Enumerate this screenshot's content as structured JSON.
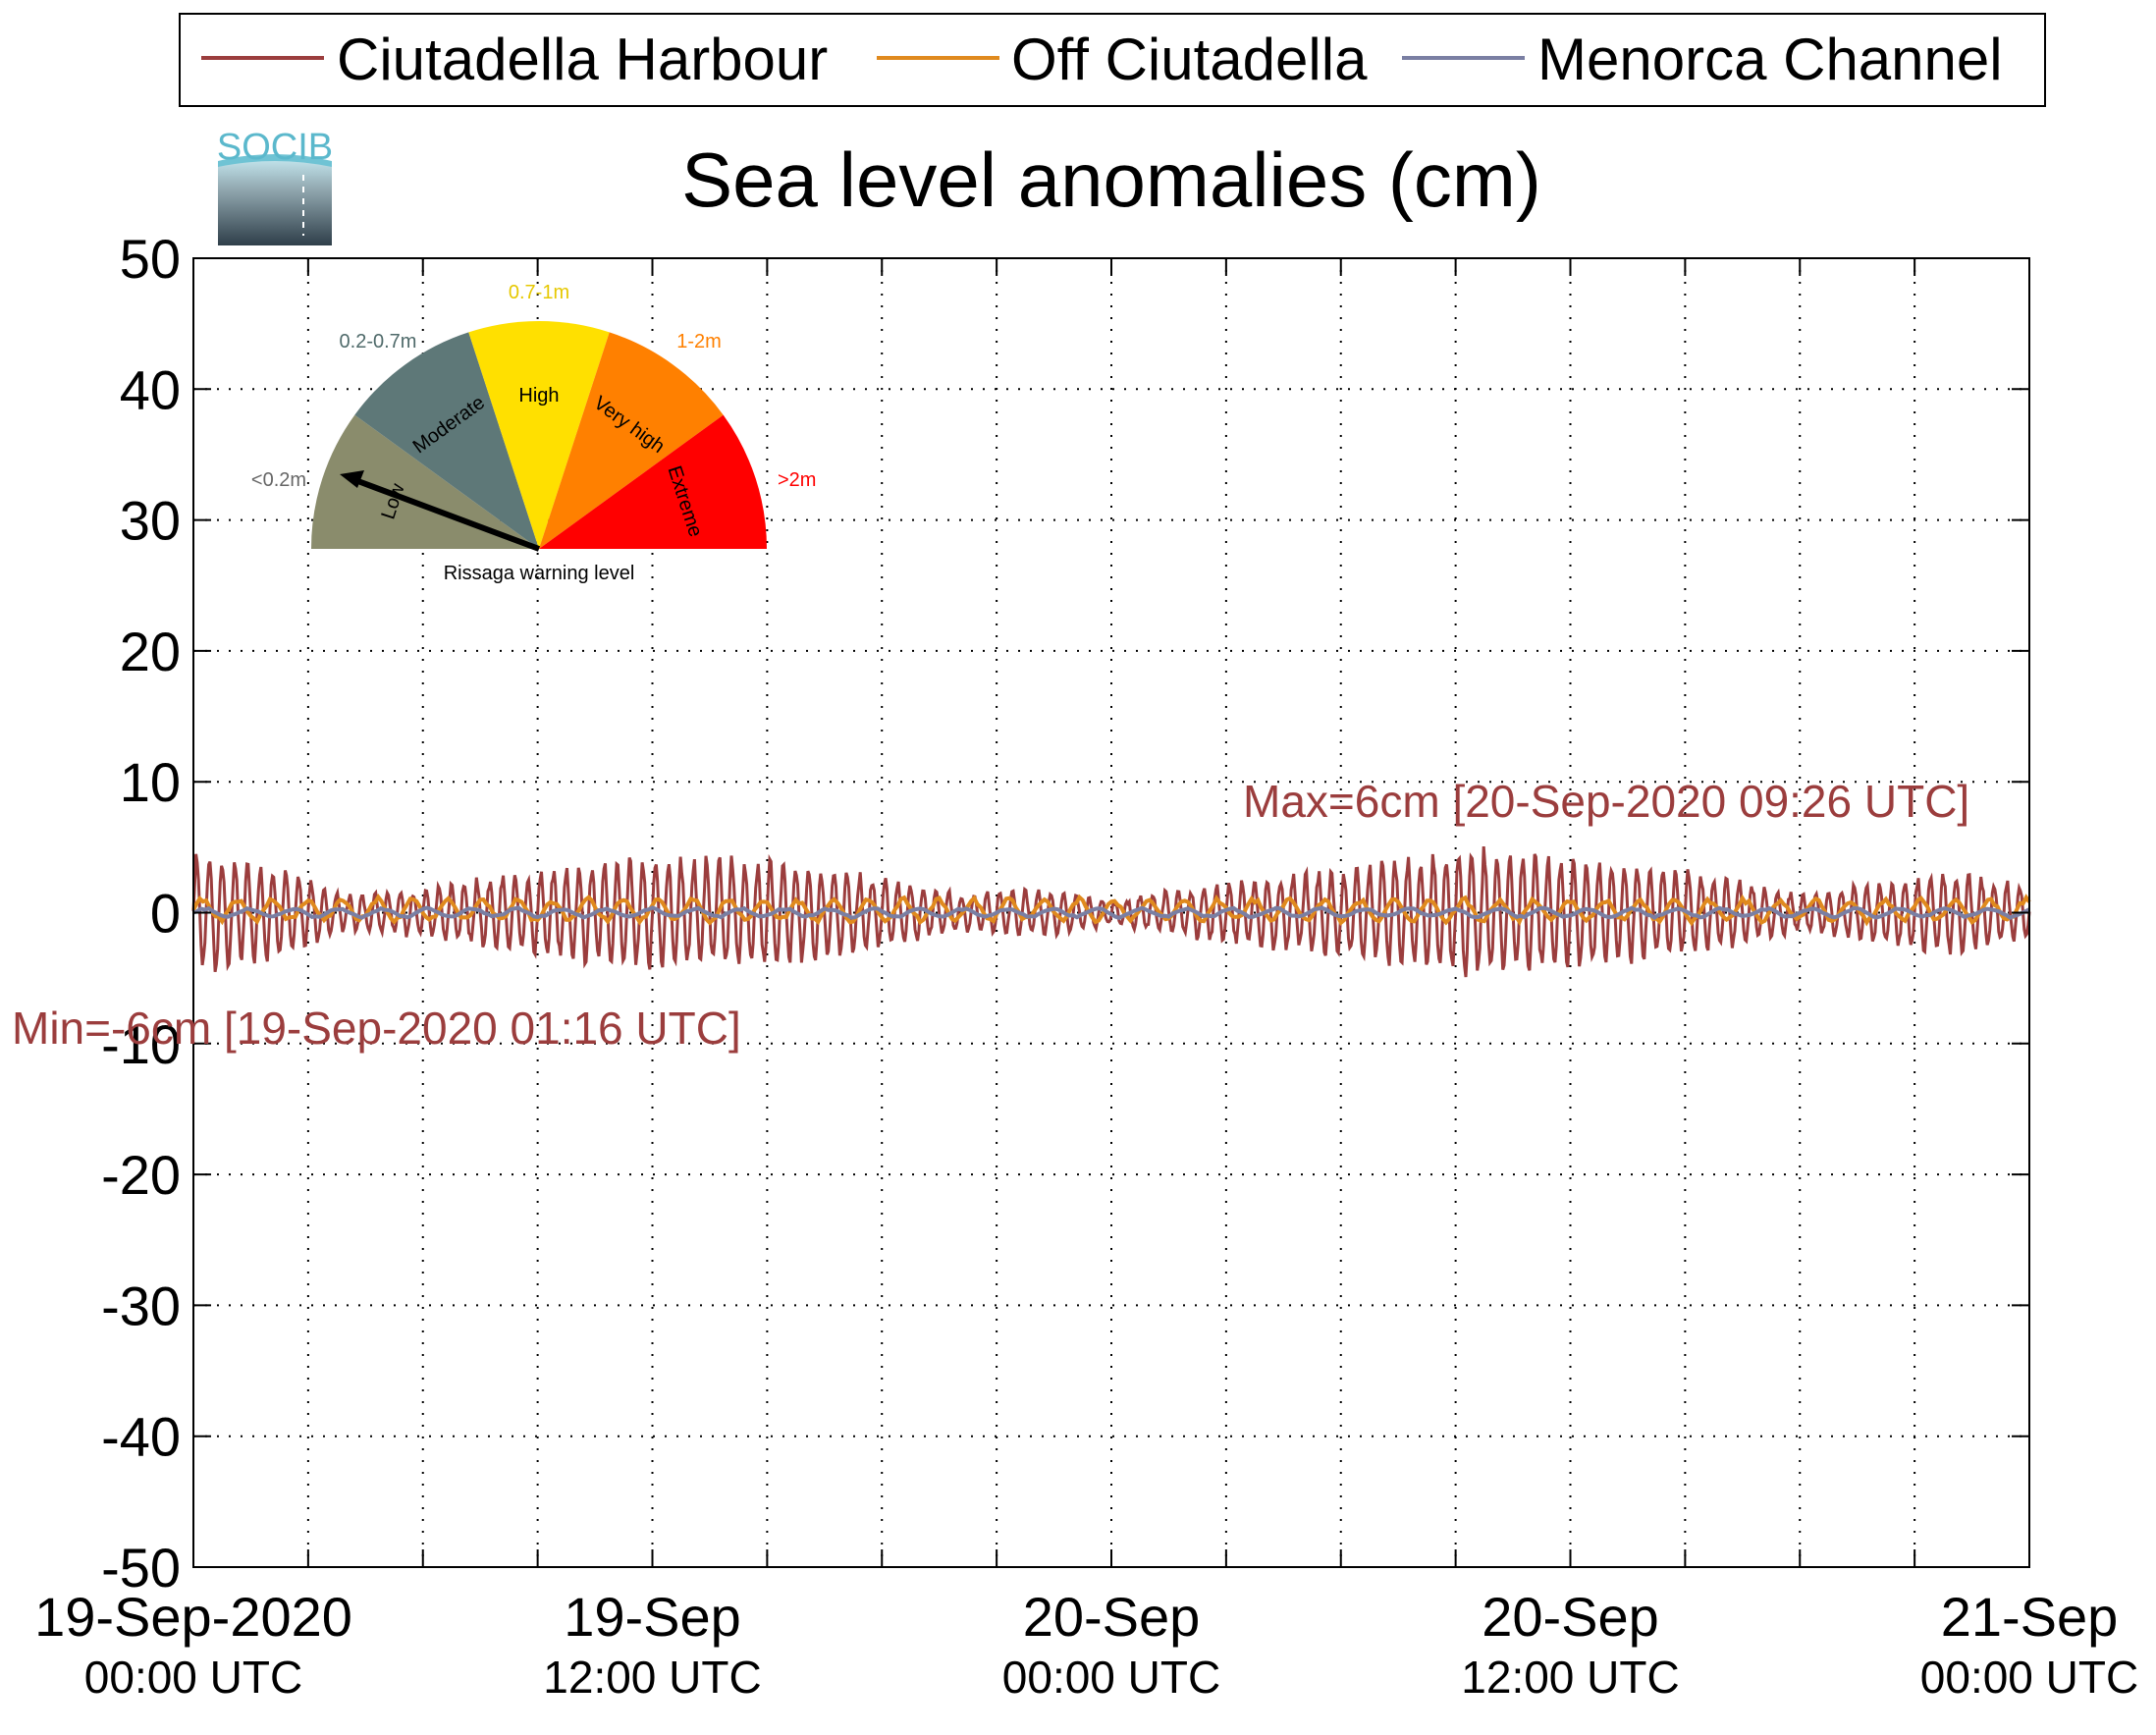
{
  "logo": {
    "text": "SOCIB"
  },
  "legend": {
    "position": "top",
    "entries": [
      {
        "label": "Ciutadella Harbour",
        "color": "#9b3d3d"
      },
      {
        "label": "Off Ciutadella",
        "color": "#e08a1e"
      },
      {
        "label": "Menorca Channel",
        "color": "#7a7fa3"
      }
    ]
  },
  "chart_data": {
    "type": "line",
    "title": "Sea level anomalies (cm)",
    "xlabel": "",
    "ylabel": "",
    "ylim": [
      -50,
      50
    ],
    "yticks": [
      "50",
      "40",
      "30",
      "20",
      "10",
      "0",
      "-10",
      "-20",
      "-30",
      "-40",
      "-50"
    ],
    "xlim": [
      "2020-09-19T00:00",
      "2020-09-21T00:00"
    ],
    "xticks": [
      {
        "date": "19-Sep-2020",
        "time": "00:00 UTC"
      },
      {
        "date": "19-Sep",
        "time": "12:00 UTC"
      },
      {
        "date": "20-Sep",
        "time": "00:00 UTC"
      },
      {
        "date": "20-Sep",
        "time": "12:00 UTC"
      },
      {
        "date": "21-Sep",
        "time": "00:00 UTC"
      }
    ],
    "grid": true,
    "annotations": {
      "max": "Max=6cm [20-Sep-2020 09:26 UTC]",
      "min": "Min=-6cm [19-Sep-2020 01:16 UTC]"
    },
    "series": [
      {
        "name": "Ciutadella Harbour",
        "color": "#9b3d3d",
        "oscillation_period_min": 20,
        "envelope_x": [
          "2020-09-19T00:00",
          "2020-09-19T02:00",
          "2020-09-19T04:00",
          "2020-09-19T06:00",
          "2020-09-19T08:00",
          "2020-09-19T10:00",
          "2020-09-19T12:00",
          "2020-09-19T14:00",
          "2020-09-19T16:00",
          "2020-09-19T18:00",
          "2020-09-19T20:00",
          "2020-09-19T22:00",
          "2020-09-20T00:00",
          "2020-09-20T02:00",
          "2020-09-20T04:00",
          "2020-09-20T06:00",
          "2020-09-20T08:00",
          "2020-09-20T09:26",
          "2020-09-20T12:00",
          "2020-09-20T14:00",
          "2020-09-20T16:00",
          "2020-09-20T18:00",
          "2020-09-20T20:00",
          "2020-09-20T22:00",
          "2020-09-21T00:00"
        ],
        "amplitude_cm": [
          5,
          4,
          1.5,
          2,
          3,
          4,
          4.5,
          4.5,
          4,
          3,
          1.5,
          2,
          1,
          2,
          3,
          3.5,
          4.5,
          5.5,
          4.5,
          4,
          3,
          1.5,
          2.5,
          3.5,
          2
        ]
      },
      {
        "name": "Off Ciutadella",
        "color": "#e08a1e",
        "amplitude_cm": 1
      },
      {
        "name": "Menorca Channel",
        "color": "#7a7fa3",
        "amplitude_cm": 0.4
      }
    ]
  },
  "gauge": {
    "caption": "Rissaga warning level",
    "current_level": "Low",
    "segments": [
      {
        "label": "Low",
        "range": "<0.2m",
        "color": "#8a8c6c",
        "range_color": "#666666"
      },
      {
        "label": "Moderate",
        "range": "0.2-0.7m",
        "color": "#5e7878",
        "range_color": "#4f6a6a"
      },
      {
        "label": "High",
        "range": "0.7-1m",
        "color": "#ffe000",
        "range_color": "#e6c800"
      },
      {
        "label": "Very high",
        "range": "1-2m",
        "color": "#ff8000",
        "range_color": "#ff8000"
      },
      {
        "label": "Extreme",
        "range": ">2m",
        "color": "#ff0000",
        "range_color": "#ff0000"
      }
    ]
  }
}
